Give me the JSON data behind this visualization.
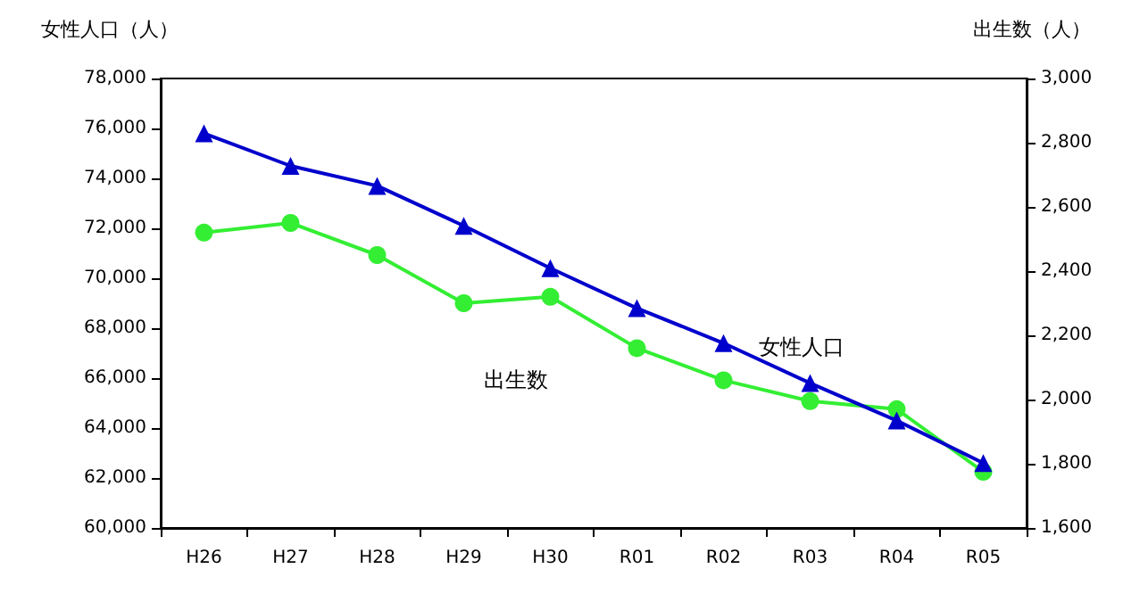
{
  "chart_data": {
    "type": "line",
    "ylabel": "女性人口（人）",
    "y2label": "出生数（人）",
    "categories": [
      "H26",
      "H27",
      "H28",
      "H29",
      "H30",
      "R01",
      "R02",
      "R03",
      "R04",
      "R05"
    ],
    "series": [
      {
        "name": "女性人口",
        "color": "#0000cc",
        "marker": "triangle",
        "values": [
          75800,
          74500,
          73700,
          72100,
          70400,
          68800,
          67400,
          65800,
          64300,
          62600
        ]
      },
      {
        "name": "出生数",
        "color": "#33ee33",
        "marker": "circle",
        "axis": "y2",
        "values": [
          2520,
          2550,
          2450,
          2300,
          2320,
          2160,
          2060,
          1995,
          1970,
          1775
        ]
      }
    ],
    "ylim": [
      60000,
      78000
    ],
    "yticks": [
      {
        "value": 60000,
        "label": "60,000"
      },
      {
        "value": 62000,
        "label": "62,000"
      },
      {
        "value": 64000,
        "label": "64,000"
      },
      {
        "value": 66000,
        "label": "66,000"
      },
      {
        "value": 68000,
        "label": "68,000"
      },
      {
        "value": 70000,
        "label": "70,000"
      },
      {
        "value": 72000,
        "label": "72,000"
      },
      {
        "value": 74000,
        "label": "74,000"
      },
      {
        "value": 76000,
        "label": "76,000"
      },
      {
        "value": 78000,
        "label": "78,000"
      }
    ],
    "y2lim": [
      1600,
      3000
    ],
    "y2ticks": [
      {
        "value": 1600,
        "label": "1,600"
      },
      {
        "value": 1800,
        "label": "1,800"
      },
      {
        "value": 2000,
        "label": "2,000"
      },
      {
        "value": 2200,
        "label": "2,200"
      },
      {
        "value": 2400,
        "label": "2,400"
      },
      {
        "value": 2600,
        "label": "2,600"
      },
      {
        "value": 2800,
        "label": "2,800"
      },
      {
        "value": 3000,
        "label": "3,000"
      }
    ],
    "grid": false,
    "legend": false
  }
}
